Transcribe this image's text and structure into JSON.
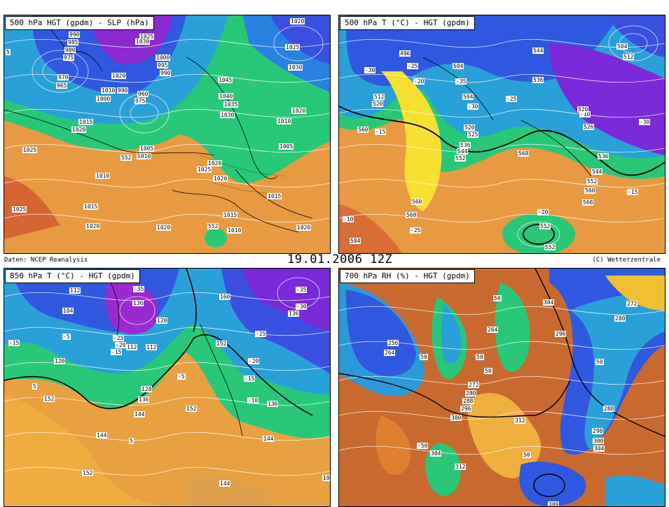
{
  "footer": {
    "source": "Daten: NCEP Reanalysis",
    "datetime": "19.01.2006 12Z",
    "copyright": "(C) Wetterzentrale"
  },
  "panels": [
    {
      "title": "500 hPa HGT (gpdm) - SLP (hPa)",
      "labels": [
        "990",
        "985",
        "980",
        "975",
        "970",
        "965",
        "1025",
        "1030",
        "1000",
        "995",
        "990",
        "1020",
        "1010",
        "1000",
        "990",
        "960",
        "975",
        "1020",
        "1025",
        "1030",
        "1045",
        "1040",
        "1035",
        "1030",
        "1020",
        "1010",
        "1015",
        "1020",
        "1005",
        "1025",
        "1010",
        "1015",
        "1020",
        "1025",
        "1005",
        "1025",
        "1020",
        "1015",
        "1010",
        "1020",
        "1020",
        "552",
        "552",
        "1015",
        "1010",
        "1020",
        "5"
      ]
    },
    {
      "title": "500 hPa T (°C) - HGT (gpdm)",
      "labels": [
        "496",
        "-30",
        "504",
        "-25",
        "-20",
        "-35",
        "512",
        "520",
        "504",
        "-25",
        "544",
        "536",
        "504",
        "512",
        "520",
        "525",
        "536",
        "544",
        "552",
        "-30",
        "-30",
        "-10",
        "520",
        "526",
        "536",
        "544",
        "552",
        "560",
        "568",
        "-15",
        "568",
        "560",
        "568",
        "-20",
        "552",
        "552",
        "-25",
        "-10",
        "584",
        "560",
        "-15"
      ]
    },
    {
      "title": "850 hPa T (°C) - HGT (gpdm)",
      "labels": [
        "112",
        "-35",
        "136",
        "104",
        "120",
        "-5",
        "-25",
        "-20",
        "-15",
        "112",
        "112",
        "120",
        "128",
        "136",
        "144",
        "152",
        "160",
        "152",
        "-20",
        "-15",
        "-10",
        "-25",
        "136",
        "144",
        "-5",
        "-15",
        "5",
        "152",
        "144",
        "152",
        "144",
        "5",
        "-35",
        "-30",
        "136",
        "10"
      ]
    },
    {
      "title": "700 hPa RH (%) - HGT (gpdm)",
      "labels": [
        "304",
        "272",
        "280",
        "264",
        "256",
        "264",
        "50",
        "50",
        "50",
        "272",
        "280",
        "288",
        "296",
        "300",
        "312",
        "304",
        "312",
        "50",
        "50",
        "296",
        "298",
        "300",
        "304",
        "288",
        "50",
        "-50",
        "300"
      ]
    }
  ]
}
